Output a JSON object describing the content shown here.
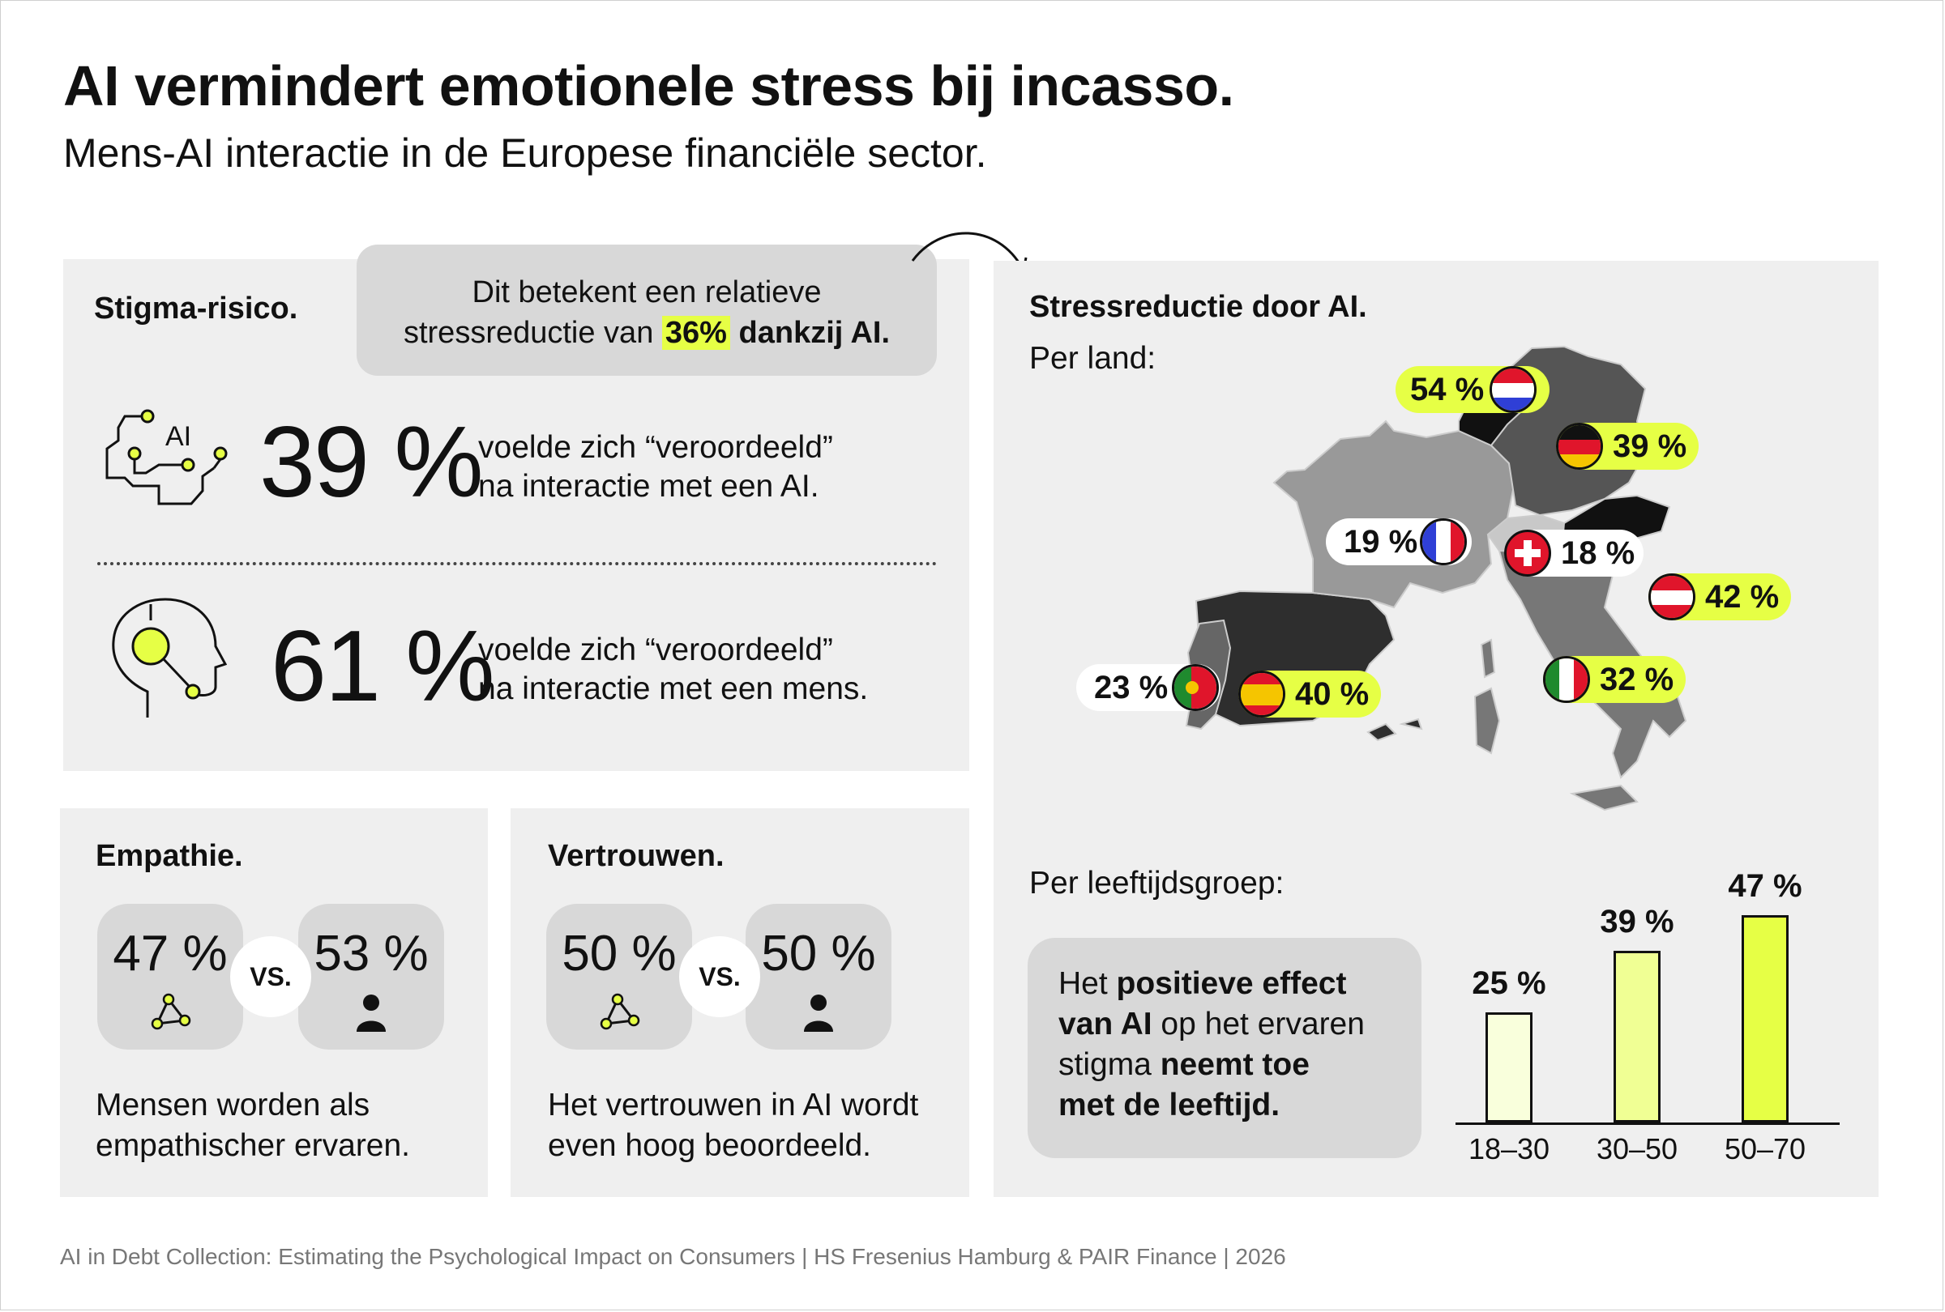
{
  "header": {
    "title": "AI vermindert emotionele stress bij incasso.",
    "subtitle": "Mens-AI interactie in de Europese financiële sector."
  },
  "stigma": {
    "heading": "Stigma-risico.",
    "callout_line1": "Dit betekent een relatieve",
    "callout_pre": "stressreductie van ",
    "callout_value": "36%",
    "callout_post": " dankzij AI.",
    "ai_icon_label": "AI",
    "ai_pct": "39 %",
    "ai_text_1": "voelde zich “veroordeeld”",
    "ai_text_2": "na interactie met een AI.",
    "human_pct": "61 %",
    "human_text_1": "voelde zich “veroordeeld”",
    "human_text_2": "na interactie met een mens."
  },
  "empathie": {
    "heading": "Empathie.",
    "ai_pct": "47 %",
    "vs": "VS.",
    "human_pct": "53 %",
    "text_1": "Mensen worden als",
    "text_2": "empathischer ervaren."
  },
  "vertrouwen": {
    "heading": "Vertrouwen.",
    "ai_pct": "50 %",
    "vs": "VS.",
    "human_pct": "50 %",
    "text_1": "Het vertrouwen in AI wordt",
    "text_2": "even hoog beoordeeld."
  },
  "stress": {
    "heading": "Stressreductie door AI.",
    "per_land": "Per land:",
    "countries": [
      {
        "code": "nl",
        "value": "54 %"
      },
      {
        "code": "de",
        "value": "39 %"
      },
      {
        "code": "fr",
        "value": "19 %"
      },
      {
        "code": "ch",
        "value": "18 %"
      },
      {
        "code": "at",
        "value": "42 %"
      },
      {
        "code": "pt",
        "value": "23 %"
      },
      {
        "code": "es",
        "value": "40 %"
      },
      {
        "code": "it",
        "value": "32 %"
      }
    ],
    "per_leeftijd": "Per leeftijdsgroep:",
    "note_1a": "Het ",
    "note_1b": "positieve effect",
    "note_2a": "van AI",
    "note_2b": " op het ervaren",
    "note_3a": "stigma ",
    "note_3b": "neemt toe",
    "note_4": "met de leeftijd."
  },
  "chart_data": {
    "type": "bar",
    "categories": [
      "18–30",
      "30–50",
      "50–70"
    ],
    "values": [
      25,
      39,
      47
    ],
    "value_labels": [
      "25 %",
      "39 %",
      "47 %"
    ],
    "colors": [
      "#f9ffdc",
      "#f0ff94",
      "#e6ff45"
    ],
    "ylim": [
      0,
      50
    ]
  },
  "footer": {
    "text": "AI in Debt Collection: Estimating the Psychological Impact on Consumers  |  HS Fresenius Hamburg & PAIR Finance  |  2026"
  },
  "colors": {
    "accent": "#e6ff45",
    "panel": "#efefef",
    "bubble": "#d8d8d8"
  }
}
